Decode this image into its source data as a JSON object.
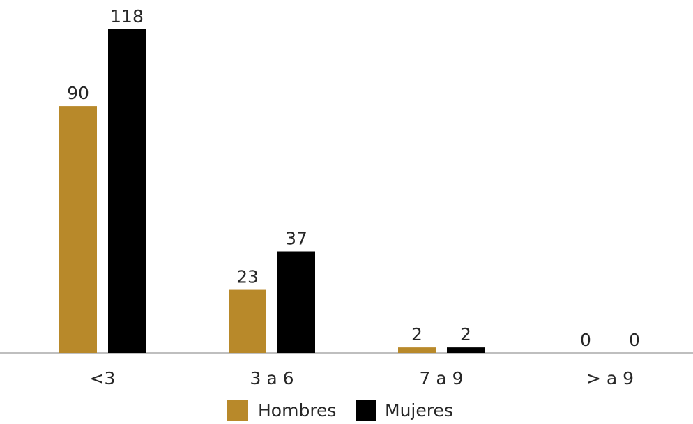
{
  "chart_data": {
    "type": "bar",
    "categories": [
      "<3",
      "3 a 6",
      "7 a 9",
      "> a 9"
    ],
    "series": [
      {
        "name": "Hombres",
        "values": [
          90,
          23,
          2,
          0
        ]
      },
      {
        "name": "Mujeres",
        "values": [
          118,
          37,
          2,
          0
        ]
      }
    ],
    "title": "",
    "xlabel": "",
    "ylabel": "",
    "ylim": [
      0,
      118
    ],
    "grid": false,
    "legend_position": "bottom",
    "data_labels": true,
    "colors": {
      "Hombres": "#B8892A",
      "Mujeres": "#000000",
      "axis": "#BFBFBF"
    }
  }
}
